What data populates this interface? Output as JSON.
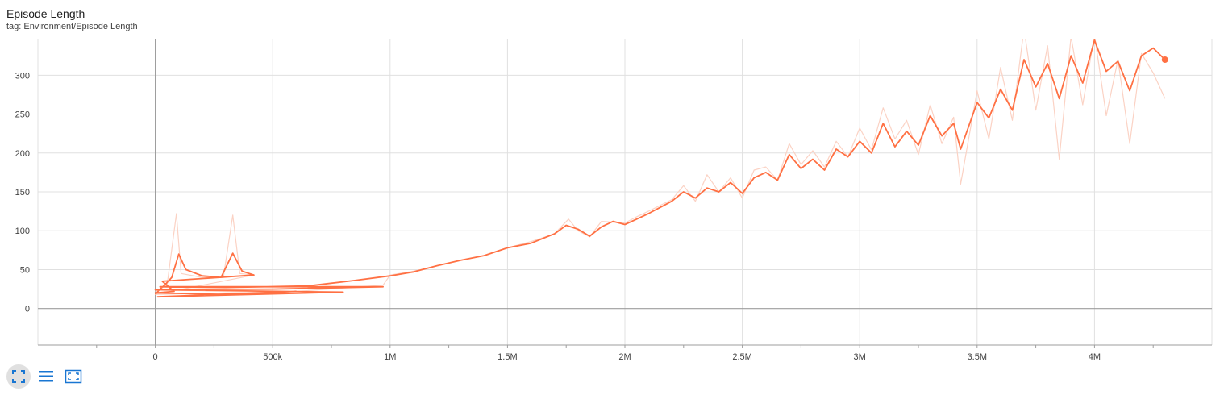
{
  "header": {
    "title": "Episode Length",
    "subtitle": "tag: Environment/Episode Length"
  },
  "toolbar": {
    "buttons": [
      {
        "name": "fit-domain-button",
        "icon": "fullscreen-icon"
      },
      {
        "name": "toggle-log-scale-button",
        "icon": "list-lines-icon"
      },
      {
        "name": "fit-to-data-button",
        "icon": "crop-frame-icon"
      }
    ]
  },
  "colors": {
    "smoothed": "#ff7043",
    "raw": "#fbd2c4",
    "grid": "#e0e0e0",
    "axis": "#9e9e9e",
    "icon": "#1976d2"
  },
  "chart_data": {
    "type": "line",
    "xlim": [
      -500000,
      4500000
    ],
    "ylim": [
      -47,
      347
    ],
    "x_ticks": [
      0,
      500000,
      1000000,
      1500000,
      2000000,
      2500000,
      3000000,
      3500000,
      4000000
    ],
    "x_tick_labels": [
      "0",
      "500k",
      "1M",
      "1.5M",
      "2M",
      "2.5M",
      "3M",
      "3.5M",
      "4M"
    ],
    "y_ticks": [
      0,
      50,
      100,
      150,
      200,
      250,
      300
    ],
    "y_tick_labels": [
      "0",
      "50",
      "100",
      "150",
      "200",
      "250",
      "300"
    ],
    "grid": true,
    "series": [
      {
        "smoothing": "raw",
        "points": [
          [
            0,
            22
          ],
          [
            50000,
            30
          ],
          [
            90000,
            122
          ],
          [
            110000,
            45
          ],
          [
            200000,
            40
          ],
          [
            290000,
            40
          ],
          [
            330000,
            120
          ],
          [
            360000,
            45
          ],
          [
            420000,
            43
          ],
          [
            0,
            18
          ],
          [
            300000,
            20
          ],
          [
            600000,
            22
          ],
          [
            970000,
            30
          ],
          [
            1000000,
            43
          ],
          [
            1100000,
            48
          ],
          [
            1200000,
            55
          ],
          [
            1300000,
            62
          ],
          [
            1400000,
            68
          ],
          [
            1500000,
            78
          ],
          [
            1600000,
            86
          ],
          [
            1700000,
            96
          ],
          [
            1760000,
            115
          ],
          [
            1800000,
            100
          ],
          [
            1850000,
            92
          ],
          [
            1900000,
            112
          ],
          [
            2000000,
            110
          ],
          [
            2050000,
            118
          ],
          [
            2100000,
            125
          ],
          [
            2200000,
            140
          ],
          [
            2250000,
            158
          ],
          [
            2300000,
            138
          ],
          [
            2350000,
            172
          ],
          [
            2400000,
            150
          ],
          [
            2450000,
            168
          ],
          [
            2500000,
            142
          ],
          [
            2550000,
            178
          ],
          [
            2600000,
            182
          ],
          [
            2650000,
            165
          ],
          [
            2700000,
            212
          ],
          [
            2750000,
            185
          ],
          [
            2800000,
            203
          ],
          [
            2850000,
            182
          ],
          [
            2900000,
            215
          ],
          [
            2950000,
            195
          ],
          [
            3000000,
            232
          ],
          [
            3050000,
            204
          ],
          [
            3100000,
            258
          ],
          [
            3150000,
            218
          ],
          [
            3200000,
            242
          ],
          [
            3250000,
            198
          ],
          [
            3300000,
            262
          ],
          [
            3350000,
            212
          ],
          [
            3400000,
            246
          ],
          [
            3430000,
            160
          ],
          [
            3500000,
            280
          ],
          [
            3550000,
            218
          ],
          [
            3600000,
            310
          ],
          [
            3650000,
            242
          ],
          [
            3700000,
            360
          ],
          [
            3750000,
            255
          ],
          [
            3800000,
            338
          ],
          [
            3850000,
            192
          ],
          [
            3900000,
            350
          ],
          [
            3950000,
            262
          ],
          [
            4000000,
            352
          ],
          [
            4050000,
            248
          ],
          [
            4100000,
            320
          ],
          [
            4150000,
            212
          ],
          [
            4200000,
            328
          ],
          [
            4250000,
            303
          ],
          [
            4300000,
            270
          ]
        ]
      },
      {
        "smoothing": "smoothed",
        "points": [
          [
            0,
            18
          ],
          [
            20000,
            25
          ],
          [
            40000,
            30
          ],
          [
            70000,
            40
          ],
          [
            100000,
            70
          ],
          [
            130000,
            50
          ],
          [
            200000,
            42
          ],
          [
            280000,
            40
          ],
          [
            330000,
            71
          ],
          [
            370000,
            48
          ],
          [
            420000,
            43
          ],
          [
            30000,
            35
          ],
          [
            80000,
            22
          ],
          [
            0,
            20
          ],
          [
            300000,
            18
          ],
          [
            600000,
            22
          ],
          [
            10000,
            15
          ],
          [
            400000,
            18
          ],
          [
            800000,
            21
          ],
          [
            0,
            24
          ],
          [
            500000,
            25
          ],
          [
            970000,
            28
          ],
          [
            20000,
            28
          ],
          [
            300000,
            27
          ],
          [
            650000,
            29
          ],
          [
            850000,
            36
          ],
          [
            1000000,
            42
          ],
          [
            1100000,
            47
          ],
          [
            1200000,
            55
          ],
          [
            1300000,
            62
          ],
          [
            1400000,
            68
          ],
          [
            1500000,
            78
          ],
          [
            1600000,
            84
          ],
          [
            1700000,
            96
          ],
          [
            1750000,
            107
          ],
          [
            1800000,
            102
          ],
          [
            1850000,
            93
          ],
          [
            1900000,
            105
          ],
          [
            1950000,
            112
          ],
          [
            2000000,
            108
          ],
          [
            2050000,
            115
          ],
          [
            2100000,
            122
          ],
          [
            2150000,
            130
          ],
          [
            2200000,
            138
          ],
          [
            2250000,
            150
          ],
          [
            2300000,
            142
          ],
          [
            2350000,
            155
          ],
          [
            2400000,
            150
          ],
          [
            2450000,
            162
          ],
          [
            2500000,
            148
          ],
          [
            2550000,
            168
          ],
          [
            2600000,
            175
          ],
          [
            2650000,
            165
          ],
          [
            2700000,
            198
          ],
          [
            2750000,
            180
          ],
          [
            2800000,
            192
          ],
          [
            2850000,
            178
          ],
          [
            2900000,
            205
          ],
          [
            2950000,
            195
          ],
          [
            3000000,
            215
          ],
          [
            3050000,
            200
          ],
          [
            3100000,
            238
          ],
          [
            3150000,
            208
          ],
          [
            3200000,
            228
          ],
          [
            3250000,
            210
          ],
          [
            3300000,
            248
          ],
          [
            3350000,
            222
          ],
          [
            3400000,
            238
          ],
          [
            3430000,
            205
          ],
          [
            3500000,
            265
          ],
          [
            3550000,
            245
          ],
          [
            3600000,
            282
          ],
          [
            3650000,
            255
          ],
          [
            3700000,
            320
          ],
          [
            3750000,
            285
          ],
          [
            3800000,
            315
          ],
          [
            3850000,
            270
          ],
          [
            3900000,
            325
          ],
          [
            3950000,
            290
          ],
          [
            4000000,
            345
          ],
          [
            4050000,
            305
          ],
          [
            4100000,
            318
          ],
          [
            4150000,
            280
          ],
          [
            4200000,
            325
          ],
          [
            4250000,
            335
          ],
          [
            4300000,
            320
          ]
        ]
      }
    ]
  }
}
